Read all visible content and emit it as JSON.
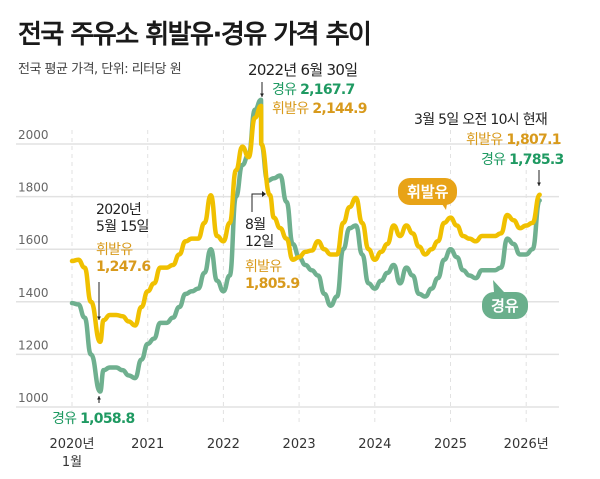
{
  "title": "전국 주유소 휘발유·경유 가격 추이",
  "subtitle": "전국 평균 가격, 단위: 리터당 원",
  "colors": {
    "gasoline": "#f0c000",
    "diesel": "#6fb08f",
    "gasoline_text": "#d89a1c",
    "diesel_text": "#1f9a62",
    "gasoline_bubble": "#e8a317",
    "diesel_bubble": "#6aaf8c"
  },
  "annotations": {
    "peak_date": "2022년 6월 30일",
    "peak_diesel_label": "경유",
    "peak_diesel_value": "2,167.7",
    "peak_gas_label": "휘발유",
    "peak_gas_value": "2,144.9",
    "now_date": "3월 5일 오전 10시 현재",
    "now_gas_label": "휘발유",
    "now_gas_value": "1,807.1",
    "now_diesel_label": "경유",
    "now_diesel_value": "1,785.3",
    "low_date_1": "2020년",
    "low_date_2": "5월 15일",
    "low_gas_label": "휘발유",
    "low_gas_value": "1,247.6",
    "low_diesel_label": "경유",
    "low_diesel_value": "1,058.8",
    "aug_date_1": "8월",
    "aug_date_2": "12일",
    "aug_gas_label": "휘발유",
    "aug_gas_value": "1,805.9"
  },
  "chart_data": {
    "type": "line",
    "title": "전국 주유소 휘발유·경유 가격 추이",
    "ylabel": "리터당 원",
    "ylim": [
      950,
      2200
    ],
    "yticks": [
      "1000",
      "1200",
      "1400",
      "1600",
      "1800",
      "2000"
    ],
    "xticks": [
      {
        "year": 2020,
        "label": "2020년",
        "label2": "1월"
      },
      {
        "year": 2021,
        "label": "2021"
      },
      {
        "year": 2022,
        "label": "2022"
      },
      {
        "year": 2023,
        "label": "2023"
      },
      {
        "year": 2024,
        "label": "2024"
      },
      {
        "year": 2025,
        "label": "2025"
      },
      {
        "year": 2026,
        "label": "2026년"
      }
    ],
    "grid": true,
    "series": [
      {
        "name": "휘발유",
        "values": [
          [
            "2020-01",
            1555
          ],
          [
            "2020-02",
            1560
          ],
          [
            "2020-03",
            1530
          ],
          [
            "2020-04",
            1400
          ],
          [
            "2020-05-15",
            1247.6
          ],
          [
            "2020-06",
            1330
          ],
          [
            "2020-07",
            1350
          ],
          [
            "2020-08",
            1350
          ],
          [
            "2020-09",
            1345
          ],
          [
            "2020-10",
            1325
          ],
          [
            "2020-11",
            1310
          ],
          [
            "2020-12",
            1380
          ],
          [
            "2021-01",
            1440
          ],
          [
            "2021-02",
            1470
          ],
          [
            "2021-03",
            1530
          ],
          [
            "2021-04",
            1530
          ],
          [
            "2021-05",
            1540
          ],
          [
            "2021-06",
            1580
          ],
          [
            "2021-07",
            1630
          ],
          [
            "2021-08",
            1640
          ],
          [
            "2021-09",
            1640
          ],
          [
            "2021-10",
            1700
          ],
          [
            "2021-11",
            1805
          ],
          [
            "2021-12",
            1650
          ],
          [
            "2022-01",
            1630
          ],
          [
            "2022-02",
            1700
          ],
          [
            "2022-03",
            1900
          ],
          [
            "2022-04",
            1990
          ],
          [
            "2022-05",
            1950
          ],
          [
            "2022-06",
            2100
          ],
          [
            "2022-06-30",
            2144.9
          ],
          [
            "2022-07",
            2000
          ],
          [
            "2022-08-12",
            1805.9
          ],
          [
            "2022-09",
            1720
          ],
          [
            "2022-10",
            1680
          ],
          [
            "2022-11",
            1640
          ],
          [
            "2022-12",
            1560
          ],
          [
            "2023-01",
            1570
          ],
          [
            "2023-02",
            1590
          ],
          [
            "2023-03",
            1595
          ],
          [
            "2023-04",
            1630
          ],
          [
            "2023-05",
            1600
          ],
          [
            "2023-06",
            1580
          ],
          [
            "2023-07",
            1580
          ],
          [
            "2023-08",
            1700
          ],
          [
            "2023-09",
            1760
          ],
          [
            "2023-10",
            1795
          ],
          [
            "2023-11",
            1700
          ],
          [
            "2023-12",
            1600
          ],
          [
            "2024-01",
            1560
          ],
          [
            "2024-02",
            1590
          ],
          [
            "2024-03",
            1620
          ],
          [
            "2024-04",
            1690
          ],
          [
            "2024-05",
            1650
          ],
          [
            "2024-06",
            1690
          ],
          [
            "2024-07",
            1660
          ],
          [
            "2024-08",
            1610
          ],
          [
            "2024-09",
            1580
          ],
          [
            "2024-10",
            1600
          ],
          [
            "2024-11",
            1630
          ],
          [
            "2024-12",
            1700
          ],
          [
            "2025-01",
            1720
          ],
          [
            "2025-02",
            1690
          ],
          [
            "2025-03",
            1650
          ],
          [
            "2025-04",
            1640
          ],
          [
            "2025-05",
            1630
          ],
          [
            "2025-06",
            1650
          ],
          [
            "2025-07",
            1650
          ],
          [
            "2025-08",
            1650
          ],
          [
            "2025-09",
            1660
          ],
          [
            "2025-10",
            1730
          ],
          [
            "2025-11",
            1710
          ],
          [
            "2025-12",
            1680
          ],
          [
            "2026-01",
            1690
          ],
          [
            "2026-02",
            1700
          ],
          [
            "2026-03-05",
            1807.1
          ]
        ]
      },
      {
        "name": "경유",
        "values": [
          [
            "2020-01",
            1395
          ],
          [
            "2020-02",
            1390
          ],
          [
            "2020-03",
            1340
          ],
          [
            "2020-04",
            1200
          ],
          [
            "2020-05-15",
            1058.8
          ],
          [
            "2020-06",
            1140
          ],
          [
            "2020-07",
            1150
          ],
          [
            "2020-08",
            1150
          ],
          [
            "2020-09",
            1140
          ],
          [
            "2020-10",
            1120
          ],
          [
            "2020-11",
            1110
          ],
          [
            "2020-12",
            1180
          ],
          [
            "2021-01",
            1240
          ],
          [
            "2021-02",
            1260
          ],
          [
            "2021-03",
            1320
          ],
          [
            "2021-04",
            1320
          ],
          [
            "2021-05",
            1340
          ],
          [
            "2021-06",
            1380
          ],
          [
            "2021-07",
            1430
          ],
          [
            "2021-08",
            1440
          ],
          [
            "2021-09",
            1450
          ],
          [
            "2021-10",
            1510
          ],
          [
            "2021-11",
            1600
          ],
          [
            "2021-12",
            1480
          ],
          [
            "2022-01",
            1440
          ],
          [
            "2022-02",
            1500
          ],
          [
            "2022-03",
            1800
          ],
          [
            "2022-04",
            1920
          ],
          [
            "2022-05",
            1960
          ],
          [
            "2022-06",
            2130
          ],
          [
            "2022-06-30",
            2167.7
          ],
          [
            "2022-07",
            2000
          ],
          [
            "2022-08",
            1860
          ],
          [
            "2022-09",
            1870
          ],
          [
            "2022-10",
            1880
          ],
          [
            "2022-11",
            1780
          ],
          [
            "2022-12",
            1620
          ],
          [
            "2023-01",
            1570
          ],
          [
            "2023-02",
            1540
          ],
          [
            "2023-03",
            1520
          ],
          [
            "2023-04",
            1500
          ],
          [
            "2023-05",
            1430
          ],
          [
            "2023-06",
            1385
          ],
          [
            "2023-07",
            1420
          ],
          [
            "2023-08",
            1600
          ],
          [
            "2023-09",
            1680
          ],
          [
            "2023-10",
            1690
          ],
          [
            "2023-11",
            1580
          ],
          [
            "2023-12",
            1470
          ],
          [
            "2024-01",
            1450
          ],
          [
            "2024-02",
            1480
          ],
          [
            "2024-03",
            1510
          ],
          [
            "2024-04",
            1540
          ],
          [
            "2024-05",
            1470
          ],
          [
            "2024-06",
            1530
          ],
          [
            "2024-07",
            1500
          ],
          [
            "2024-08",
            1430
          ],
          [
            "2024-09",
            1420
          ],
          [
            "2024-10",
            1450
          ],
          [
            "2024-11",
            1490
          ],
          [
            "2024-12",
            1560
          ],
          [
            "2025-01",
            1600
          ],
          [
            "2025-02",
            1570
          ],
          [
            "2025-03",
            1520
          ],
          [
            "2025-04",
            1500
          ],
          [
            "2025-05",
            1490
          ],
          [
            "2025-06",
            1520
          ],
          [
            "2025-07",
            1520
          ],
          [
            "2025-08",
            1520
          ],
          [
            "2025-09",
            1530
          ],
          [
            "2025-10",
            1640
          ],
          [
            "2025-11",
            1620
          ],
          [
            "2025-12",
            1580
          ],
          [
            "2026-01",
            1580
          ],
          [
            "2026-02",
            1600
          ],
          [
            "2026-03-05",
            1785.3
          ]
        ]
      }
    ]
  }
}
